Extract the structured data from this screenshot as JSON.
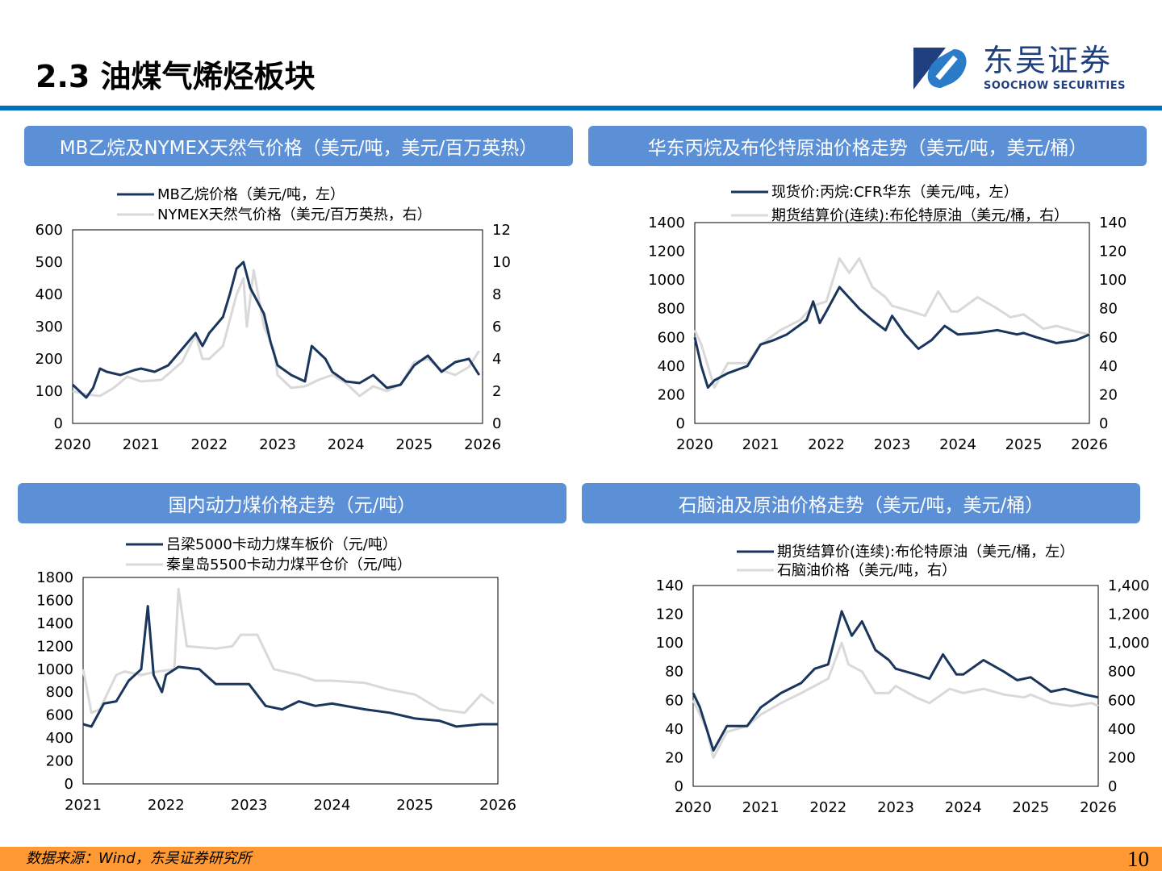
{
  "header": {
    "title": "2.3 油煤气烯烃板块",
    "logo_cn": "东吴证券",
    "logo_en": "SOOCHOW SECURITIES"
  },
  "footer": {
    "source": "数据来源：Wind，东吴证券研究所",
    "page": "10"
  },
  "colors": {
    "dark": "#1b365d",
    "light": "#d9d9d9",
    "banner": "#5b8fd6",
    "rule": "#0070c0",
    "footer": "#ff9933"
  },
  "chart_data": [
    {
      "type": "line",
      "title": "MB乙烷及NYMEX天然气价格（美元/吨，美元/百万英热）",
      "xlim": [
        2020,
        2026
      ],
      "xticks": [
        "2020",
        "2021",
        "2022",
        "2023",
        "2024",
        "2025",
        "2026"
      ],
      "ylim_left": [
        0,
        600
      ],
      "yticks_left": [
        "0",
        "100",
        "200",
        "300",
        "400",
        "500",
        "600"
      ],
      "ylim_right": [
        0,
        12
      ],
      "yticks_right": [
        "0",
        "2",
        "4",
        "6",
        "8",
        "10",
        "12"
      ],
      "legend": "top",
      "series": [
        {
          "name": "MB乙烷价格（美元/吨，左）",
          "axis": "left",
          "color": "dark",
          "x": [
            2020,
            2020.1,
            2020.2,
            2020.3,
            2020.4,
            2020.5,
            2020.7,
            2020.9,
            2021,
            2021.2,
            2021.4,
            2021.6,
            2021.8,
            2021.9,
            2022,
            2022.2,
            2022.3,
            2022.4,
            2022.5,
            2022.6,
            2022.7,
            2022.8,
            2022.9,
            2023,
            2023.2,
            2023.4,
            2023.5,
            2023.6,
            2023.7,
            2023.8,
            2024,
            2024.2,
            2024.4,
            2024.6,
            2024.8,
            2025,
            2025.2,
            2025.4,
            2025.6,
            2025.8,
            2025.95
          ],
          "y": [
            120,
            100,
            80,
            110,
            170,
            160,
            150,
            165,
            170,
            160,
            180,
            230,
            280,
            240,
            280,
            330,
            400,
            480,
            500,
            420,
            380,
            340,
            250,
            180,
            150,
            130,
            240,
            220,
            200,
            160,
            130,
            125,
            150,
            110,
            120,
            180,
            210,
            160,
            190,
            200,
            150
          ]
        },
        {
          "name": "NYMEX天然气价格（美元/百万英热，右）",
          "axis": "right",
          "color": "light",
          "x": [
            2020,
            2020.2,
            2020.4,
            2020.6,
            2020.8,
            2021,
            2021.3,
            2021.6,
            2021.8,
            2021.9,
            2022,
            2022.2,
            2022.4,
            2022.5,
            2022.55,
            2022.65,
            2022.8,
            2022.95,
            2023,
            2023.2,
            2023.4,
            2023.6,
            2023.8,
            2024,
            2024.2,
            2024.4,
            2024.6,
            2024.8,
            2025,
            2025.2,
            2025.4,
            2025.6,
            2025.8,
            2025.95
          ],
          "y": [
            2,
            1.8,
            1.7,
            2.2,
            2.9,
            2.6,
            2.7,
            3.8,
            5.5,
            4,
            4,
            4.8,
            8,
            9,
            6,
            9.5,
            6,
            4.5,
            3,
            2.2,
            2.3,
            2.7,
            3,
            2.5,
            1.7,
            2.3,
            2,
            2.4,
            3.8,
            4,
            3.3,
            3,
            3.5,
            4.5
          ]
        }
      ]
    },
    {
      "type": "line",
      "title": "华东丙烷及布伦特原油价格走势（美元/吨，美元/桶）",
      "xlim": [
        2020,
        2026
      ],
      "xticks": [
        "2020",
        "2021",
        "2022",
        "2023",
        "2024",
        "2025",
        "2026"
      ],
      "ylim_left": [
        0,
        1400
      ],
      "yticks_left": [
        "0",
        "200",
        "400",
        "600",
        "800",
        "1000",
        "1200",
        "1400"
      ],
      "ylim_right": [
        0,
        140
      ],
      "yticks_right": [
        "0",
        "20",
        "40",
        "60",
        "80",
        "100",
        "120",
        "140"
      ],
      "legend": "top",
      "series": [
        {
          "name": "现货价:丙烷:CFR华东（美元/吨，左）",
          "axis": "left",
          "color": "dark",
          "x": [
            2020,
            2020.1,
            2020.2,
            2020.3,
            2020.5,
            2020.8,
            2021,
            2021.2,
            2021.4,
            2021.7,
            2021.8,
            2021.9,
            2022,
            2022.2,
            2022.3,
            2022.5,
            2022.7,
            2022.9,
            2023,
            2023.2,
            2023.4,
            2023.6,
            2023.8,
            2024,
            2024.3,
            2024.6,
            2024.9,
            2025,
            2025.2,
            2025.5,
            2025.8,
            2026
          ],
          "y": [
            600,
            400,
            250,
            300,
            350,
            400,
            550,
            580,
            620,
            720,
            850,
            700,
            780,
            950,
            900,
            800,
            720,
            650,
            750,
            620,
            520,
            580,
            680,
            620,
            630,
            650,
            620,
            630,
            600,
            560,
            580,
            620
          ]
        },
        {
          "name": "期货结算价(连续):布伦特原油（美元/桶，右）",
          "axis": "right",
          "color": "light",
          "x": [
            2020,
            2020.1,
            2020.3,
            2020.5,
            2020.8,
            2021,
            2021.3,
            2021.6,
            2021.8,
            2022,
            2022.2,
            2022.35,
            2022.5,
            2022.7,
            2022.9,
            2023,
            2023.3,
            2023.5,
            2023.7,
            2023.9,
            2024,
            2024.3,
            2024.6,
            2024.8,
            2025,
            2025.3,
            2025.5,
            2025.8,
            2026
          ],
          "y": [
            65,
            55,
            25,
            42,
            42,
            55,
            65,
            72,
            82,
            85,
            115,
            105,
            115,
            95,
            88,
            82,
            78,
            75,
            92,
            78,
            78,
            88,
            80,
            74,
            76,
            66,
            68,
            64,
            62
          ]
        }
      ]
    },
    {
      "type": "line",
      "title": "国内动力煤价格走势（元/吨）",
      "xlim": [
        2021,
        2026
      ],
      "xticks": [
        "2021",
        "2022",
        "2023",
        "2024",
        "2025",
        "2026"
      ],
      "ylim_left": [
        0,
        1800
      ],
      "yticks_left": [
        "0",
        "200",
        "400",
        "600",
        "800",
        "1000",
        "1200",
        "1400",
        "1600",
        "1800"
      ],
      "legend": "top",
      "series": [
        {
          "name": "吕梁5000卡动力煤车板价（元/吨）",
          "axis": "left",
          "color": "dark",
          "x": [
            2021,
            2021.1,
            2021.25,
            2021.4,
            2021.55,
            2021.7,
            2021.78,
            2021.85,
            2021.95,
            2022,
            2022.15,
            2022.4,
            2022.6,
            2023,
            2023.2,
            2023.4,
            2023.6,
            2023.8,
            2024,
            2024.4,
            2024.7,
            2025,
            2025.3,
            2025.5,
            2025.8,
            2026
          ],
          "y": [
            520,
            500,
            700,
            720,
            900,
            1000,
            1550,
            950,
            800,
            950,
            1020,
            1000,
            870,
            870,
            680,
            650,
            720,
            680,
            700,
            650,
            620,
            570,
            550,
            500,
            520,
            520
          ]
        },
        {
          "name": "秦皇岛5500卡动力煤平仓价（元/吨）",
          "axis": "left",
          "color": "light",
          "x": [
            2021,
            2021.1,
            2021.2,
            2021.4,
            2021.5,
            2021.7,
            2021.9,
            2022.1,
            2022.15,
            2022.25,
            2022.6,
            2022.8,
            2022.9,
            2023.1,
            2023.3,
            2023.6,
            2023.8,
            2024,
            2024.4,
            2024.7,
            2025,
            2025.3,
            2025.6,
            2025.8,
            2025.95
          ],
          "y": [
            1000,
            620,
            650,
            950,
            980,
            950,
            980,
            1000,
            1700,
            1200,
            1180,
            1200,
            1300,
            1300,
            1000,
            950,
            900,
            900,
            880,
            820,
            780,
            650,
            620,
            780,
            700
          ]
        }
      ]
    },
    {
      "type": "line",
      "title": "石脑油及原油价格走势（美元/吨，美元/桶）",
      "xlim": [
        2020,
        2026
      ],
      "xticks": [
        "2020",
        "2021",
        "2022",
        "2023",
        "2024",
        "2025",
        "2026"
      ],
      "ylim_left": [
        0,
        140
      ],
      "yticks_left": [
        "0",
        "20",
        "40",
        "60",
        "80",
        "100",
        "120",
        "140"
      ],
      "ylim_right": [
        0,
        1400
      ],
      "yticks_right": [
        "0",
        "200",
        "400",
        "600",
        "800",
        "1,000",
        "1,200",
        "1,400"
      ],
      "legend": "top",
      "series": [
        {
          "name": "期货结算价(连续):布伦特原油（美元/桶，左）",
          "axis": "left",
          "color": "dark",
          "x": [
            2020,
            2020.1,
            2020.3,
            2020.5,
            2020.8,
            2021,
            2021.3,
            2021.6,
            2021.8,
            2022,
            2022.2,
            2022.35,
            2022.5,
            2022.7,
            2022.9,
            2023,
            2023.3,
            2023.5,
            2023.7,
            2023.9,
            2024,
            2024.3,
            2024.6,
            2024.8,
            2025,
            2025.3,
            2025.5,
            2025.8,
            2026
          ],
          "y": [
            65,
            55,
            25,
            42,
            42,
            55,
            65,
            72,
            82,
            85,
            122,
            105,
            115,
            95,
            88,
            82,
            78,
            75,
            92,
            78,
            78,
            88,
            80,
            74,
            76,
            66,
            68,
            64,
            62
          ]
        },
        {
          "name": "石脑油价格（美元/吨，右）",
          "axis": "right",
          "color": "light",
          "x": [
            2020,
            2020.2,
            2020.3,
            2020.5,
            2020.8,
            2021,
            2021.3,
            2021.6,
            2021.8,
            2022,
            2022.2,
            2022.3,
            2022.5,
            2022.7,
            2022.9,
            2023,
            2023.3,
            2023.5,
            2023.8,
            2024,
            2024.3,
            2024.6,
            2024.9,
            2025,
            2025.3,
            2025.6,
            2025.9,
            2026
          ],
          "y": [
            600,
            400,
            200,
            380,
            420,
            500,
            580,
            650,
            700,
            750,
            1000,
            850,
            800,
            650,
            650,
            700,
            620,
            580,
            680,
            650,
            680,
            640,
            620,
            640,
            580,
            560,
            580,
            560
          ]
        }
      ]
    }
  ]
}
